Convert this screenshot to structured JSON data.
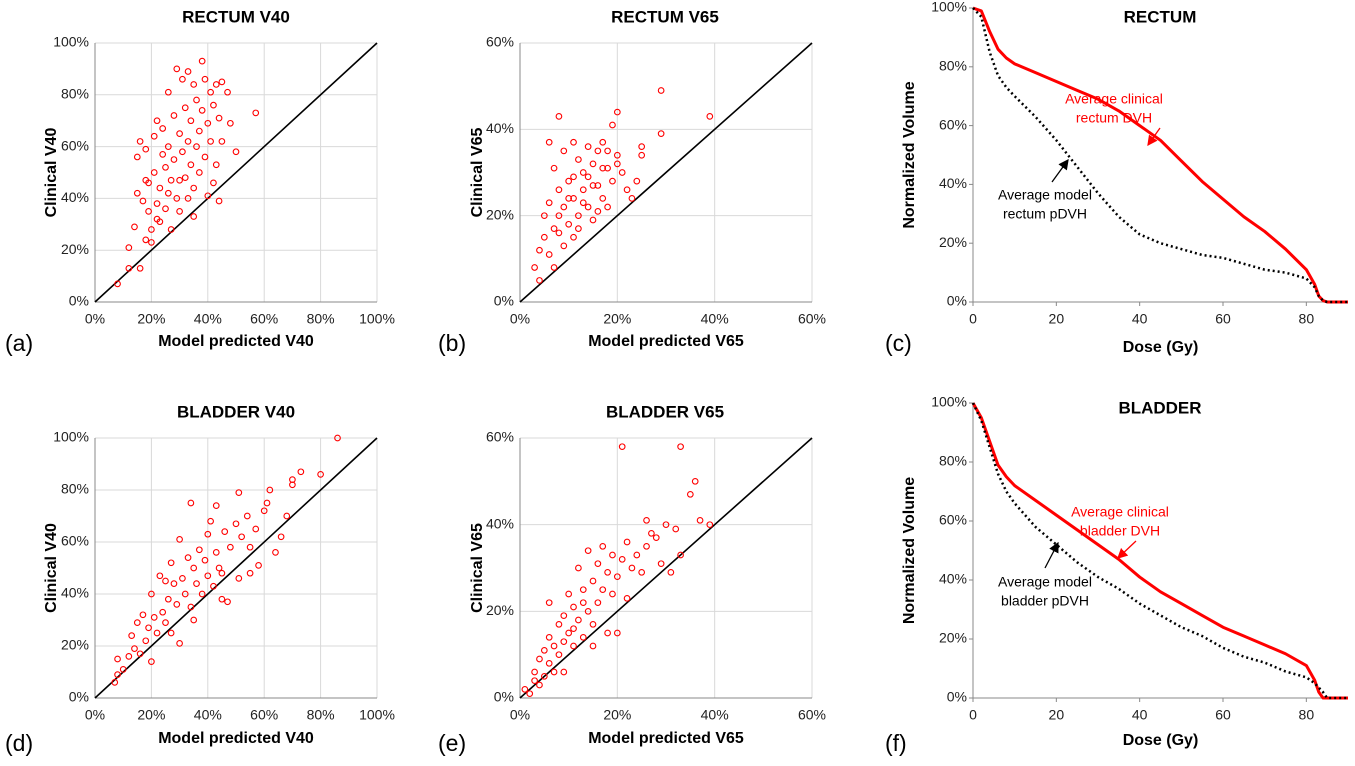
{
  "chart_data": [
    {
      "type": "scatter",
      "title": "RECTUM V40",
      "panel_label": "(a)",
      "x_label": "Model predicted V40",
      "y_label": "Clinical V40",
      "color": "#ff0000",
      "identity_line": true,
      "grid": true,
      "xlim": [
        0,
        100
      ],
      "ylim": [
        0,
        100
      ],
      "xticks": [
        {
          "value": 0,
          "label": "0%"
        },
        {
          "value": 20,
          "label": "20%"
        },
        {
          "value": 40,
          "label": "40%"
        },
        {
          "value": 60,
          "label": "60%"
        },
        {
          "value": 80,
          "label": "80%"
        },
        {
          "value": 100,
          "label": "100%"
        }
      ],
      "yticks": [
        {
          "value": 0,
          "label": "0%"
        },
        {
          "value": 20,
          "label": "20%"
        },
        {
          "value": 40,
          "label": "40%"
        },
        {
          "value": 60,
          "label": "60%"
        },
        {
          "value": 80,
          "label": "80%"
        },
        {
          "value": 100,
          "label": "100%"
        }
      ],
      "x": [
        8,
        12,
        12,
        14,
        15,
        15,
        16,
        16,
        17,
        18,
        18,
        19,
        19,
        20,
        20,
        21,
        21,
        22,
        22,
        23,
        23,
        24,
        24,
        25,
        25,
        26,
        26,
        27,
        27,
        28,
        28,
        29,
        29,
        30,
        30,
        31,
        31,
        32,
        32,
        33,
        33,
        33,
        34,
        34,
        35,
        35,
        36,
        36,
        37,
        37,
        38,
        38,
        39,
        39,
        40,
        40,
        41,
        41,
        42,
        42,
        43,
        43,
        44,
        44,
        45,
        45,
        47,
        48,
        50,
        57,
        35,
        30,
        26,
        22,
        18
      ],
      "values": [
        7,
        13,
        21,
        29,
        56,
        42,
        62,
        13,
        39,
        24,
        59,
        46,
        35,
        28,
        23,
        64,
        50,
        70,
        38,
        44,
        31,
        57,
        67,
        52,
        36,
        81,
        60,
        47,
        28,
        72,
        55,
        90,
        40,
        65,
        35,
        86,
        58,
        75,
        48,
        89,
        62,
        40,
        70,
        53,
        84,
        44,
        78,
        60,
        66,
        50,
        93,
        74,
        86,
        56,
        69,
        41,
        81,
        62,
        76,
        46,
        84,
        53,
        71,
        39,
        85,
        62,
        81,
        69,
        58,
        73,
        33,
        47,
        42,
        32,
        47
      ]
    },
    {
      "type": "scatter",
      "title": "RECTUM V65",
      "panel_label": "(b)",
      "x_label": "Model predicted V65",
      "y_label": "Clinical V65",
      "color": "#ff0000",
      "identity_line": true,
      "grid": true,
      "xlim": [
        0,
        60
      ],
      "ylim": [
        0,
        60
      ],
      "xticks": [
        {
          "value": 0,
          "label": "0%"
        },
        {
          "value": 20,
          "label": "20%"
        },
        {
          "value": 40,
          "label": "40%"
        },
        {
          "value": 60,
          "label": "60%"
        }
      ],
      "yticks": [
        {
          "value": 0,
          "label": "0%"
        },
        {
          "value": 20,
          "label": "20%"
        },
        {
          "value": 40,
          "label": "40%"
        },
        {
          "value": 60,
          "label": "60%"
        }
      ],
      "x": [
        3,
        4,
        4,
        5,
        5,
        6,
        6,
        6,
        7,
        7,
        7,
        8,
        8,
        8,
        9,
        9,
        9,
        10,
        10,
        11,
        11,
        11,
        12,
        12,
        13,
        13,
        14,
        14,
        15,
        15,
        16,
        16,
        17,
        17,
        18,
        18,
        19,
        19,
        20,
        20,
        21,
        22,
        23,
        24,
        25,
        25,
        29,
        29,
        39,
        10,
        12,
        14,
        16,
        18,
        8,
        11,
        13,
        15,
        17,
        20
      ],
      "values": [
        8,
        12,
        5,
        20,
        15,
        23,
        11,
        37,
        31,
        17,
        8,
        43,
        26,
        20,
        35,
        22,
        13,
        28,
        18,
        37,
        24,
        15,
        33,
        20,
        30,
        26,
        36,
        22,
        32,
        19,
        35,
        27,
        37,
        24,
        31,
        22,
        41,
        28,
        44,
        34,
        30,
        26,
        24,
        28,
        34,
        36,
        49,
        39,
        43,
        24,
        17,
        29,
        21,
        35,
        16,
        29,
        23,
        27,
        31,
        32
      ]
    },
    {
      "type": "line",
      "title": "RECTUM",
      "panel_label": "(c)",
      "x_label": "Dose (Gy)",
      "y_label": "Normalized Volume",
      "xlim": [
        0,
        90
      ],
      "ylim": [
        0,
        100
      ],
      "xticks": [
        0,
        20,
        40,
        60,
        80
      ],
      "yticks": [
        {
          "value": 0,
          "label": "0%"
        },
        {
          "value": 20,
          "label": "20%"
        },
        {
          "value": 40,
          "label": "40%"
        },
        {
          "value": 60,
          "label": "60%"
        },
        {
          "value": 80,
          "label": "80%"
        },
        {
          "value": 100,
          "label": "100%"
        }
      ],
      "x": [
        0,
        2,
        4,
        6,
        8,
        10,
        15,
        20,
        25,
        30,
        35,
        40,
        45,
        50,
        55,
        60,
        65,
        70,
        75,
        80,
        82,
        83,
        84,
        85,
        90
      ],
      "series": [
        {
          "name": "Average clinical rectum DVH",
          "color": "#ff0000",
          "dash": false,
          "values": [
            100,
            99,
            92,
            86,
            83,
            81,
            78,
            75,
            72,
            69,
            65,
            60,
            55,
            48,
            41,
            35,
            29,
            24,
            18,
            11,
            6,
            2,
            0.5,
            0,
            0
          ]
        },
        {
          "name": "Average model rectum pDVH",
          "color": "#000000",
          "dash": true,
          "values": [
            100,
            97,
            85,
            77,
            73,
            70,
            63,
            55,
            46,
            37,
            29,
            23,
            20,
            18,
            16,
            15,
            13,
            11,
            10,
            8,
            5,
            2,
            0.5,
            0,
            0
          ]
        }
      ],
      "annotations": [
        {
          "lines": [
            "Average clinical",
            "rectum DVH"
          ],
          "color": "#ff0000"
        },
        {
          "lines": [
            "Average model",
            "rectum pDVH"
          ],
          "color": "#000000"
        }
      ]
    },
    {
      "type": "scatter",
      "title": "BLADDER V40",
      "panel_label": "(d)",
      "x_label": "Model predicted V40",
      "y_label": "Clinical V40",
      "color": "#ff0000",
      "identity_line": true,
      "grid": true,
      "xlim": [
        0,
        100
      ],
      "ylim": [
        0,
        100
      ],
      "xticks": [
        {
          "value": 0,
          "label": "0%"
        },
        {
          "value": 20,
          "label": "20%"
        },
        {
          "value": 40,
          "label": "40%"
        },
        {
          "value": 60,
          "label": "60%"
        },
        {
          "value": 80,
          "label": "80%"
        },
        {
          "value": 100,
          "label": "100%"
        }
      ],
      "yticks": [
        {
          "value": 0,
          "label": "0%"
        },
        {
          "value": 20,
          "label": "20%"
        },
        {
          "value": 40,
          "label": "40%"
        },
        {
          "value": 60,
          "label": "60%"
        },
        {
          "value": 80,
          "label": "80%"
        },
        {
          "value": 100,
          "label": "100%"
        }
      ],
      "x": [
        7,
        8,
        8,
        10,
        12,
        13,
        14,
        15,
        16,
        17,
        18,
        19,
        20,
        20,
        21,
        22,
        23,
        24,
        25,
        26,
        27,
        27,
        28,
        29,
        30,
        30,
        31,
        32,
        33,
        34,
        34,
        35,
        36,
        37,
        38,
        39,
        40,
        40,
        41,
        42,
        43,
        43,
        44,
        45,
        46,
        47,
        48,
        50,
        51,
        51,
        52,
        54,
        55,
        57,
        58,
        60,
        61,
        62,
        64,
        66,
        68,
        70,
        70,
        73,
        80,
        86,
        25,
        35,
        45,
        55
      ],
      "values": [
        6,
        15,
        9,
        11,
        16,
        24,
        19,
        29,
        17,
        32,
        22,
        27,
        40,
        14,
        31,
        25,
        47,
        33,
        29,
        38,
        52,
        25,
        44,
        36,
        61,
        21,
        46,
        40,
        54,
        75,
        35,
        50,
        44,
        57,
        40,
        53,
        63,
        47,
        68,
        43,
        74,
        56,
        50,
        48,
        64,
        37,
        58,
        67,
        79,
        46,
        62,
        70,
        58,
        65,
        51,
        72,
        75,
        80,
        56,
        62,
        70,
        82,
        84,
        87,
        86,
        100,
        45,
        30,
        38,
        48
      ]
    },
    {
      "type": "scatter",
      "title": "BLADDER V65",
      "panel_label": "(e)",
      "x_label": "Model predicted V65",
      "y_label": "Clinical V65",
      "color": "#ff0000",
      "identity_line": true,
      "grid": true,
      "xlim": [
        0,
        60
      ],
      "ylim": [
        0,
        60
      ],
      "xticks": [
        {
          "value": 0,
          "label": "0%"
        },
        {
          "value": 20,
          "label": "20%"
        },
        {
          "value": 40,
          "label": "40%"
        },
        {
          "value": 60,
          "label": "60%"
        }
      ],
      "yticks": [
        {
          "value": 0,
          "label": "0%"
        },
        {
          "value": 20,
          "label": "20%"
        },
        {
          "value": 40,
          "label": "40%"
        },
        {
          "value": 60,
          "label": "60%"
        }
      ],
      "x": [
        1,
        2,
        3,
        3,
        4,
        4,
        5,
        5,
        6,
        6,
        6,
        7,
        7,
        8,
        8,
        9,
        9,
        10,
        10,
        11,
        11,
        12,
        12,
        13,
        13,
        14,
        14,
        15,
        15,
        16,
        16,
        17,
        17,
        18,
        18,
        19,
        19,
        20,
        20,
        21,
        21,
        22,
        22,
        23,
        24,
        25,
        26,
        26,
        27,
        28,
        29,
        30,
        31,
        32,
        33,
        33,
        35,
        36,
        37,
        39,
        9,
        11,
        13,
        15
      ],
      "values": [
        2,
        1,
        4,
        6,
        3,
        9,
        5,
        11,
        8,
        14,
        22,
        6,
        12,
        17,
        10,
        19,
        13,
        24,
        15,
        21,
        12,
        30,
        18,
        25,
        14,
        34,
        20,
        27,
        17,
        31,
        22,
        35,
        25,
        29,
        15,
        33,
        24,
        28,
        15,
        58,
        32,
        36,
        23,
        30,
        33,
        29,
        41,
        35,
        38,
        37,
        31,
        40,
        29,
        39,
        58,
        33,
        47,
        50,
        41,
        40,
        6,
        16,
        22,
        12
      ]
    },
    {
      "type": "line",
      "title": "BLADDER",
      "panel_label": "(f)",
      "x_label": "Dose (Gy)",
      "y_label": "Normalized Volume",
      "xlim": [
        0,
        90
      ],
      "ylim": [
        0,
        100
      ],
      "xticks": [
        0,
        20,
        40,
        60,
        80
      ],
      "yticks": [
        {
          "value": 0,
          "label": "0%"
        },
        {
          "value": 20,
          "label": "20%"
        },
        {
          "value": 40,
          "label": "40%"
        },
        {
          "value": 60,
          "label": "60%"
        },
        {
          "value": 80,
          "label": "80%"
        },
        {
          "value": 100,
          "label": "100%"
        }
      ],
      "x": [
        0,
        2,
        4,
        6,
        8,
        10,
        15,
        20,
        25,
        30,
        35,
        40,
        45,
        50,
        55,
        60,
        65,
        70,
        75,
        80,
        82,
        83,
        84,
        85,
        90
      ],
      "series": [
        {
          "name": "Average clinical bladder DVH",
          "color": "#ff0000",
          "dash": false,
          "values": [
            100,
            95,
            87,
            79,
            75,
            72,
            67,
            62,
            57,
            52,
            47,
            41,
            36,
            32,
            28,
            24,
            21,
            18,
            15,
            11,
            6,
            2,
            0,
            0,
            0
          ]
        },
        {
          "name": "Average model bladder pDVH",
          "color": "#000000",
          "dash": true,
          "values": [
            100,
            94,
            85,
            76,
            70,
            66,
            58,
            52,
            46,
            41,
            37,
            32,
            28,
            24,
            21,
            17,
            14,
            12,
            9,
            7,
            5,
            3.5,
            2,
            0,
            0
          ]
        }
      ],
      "annotations": [
        {
          "lines": [
            "Average clinical",
            "bladder DVH"
          ],
          "color": "#ff0000"
        },
        {
          "lines": [
            "Average model",
            "bladder pDVH"
          ],
          "color": "#000000"
        }
      ]
    }
  ]
}
